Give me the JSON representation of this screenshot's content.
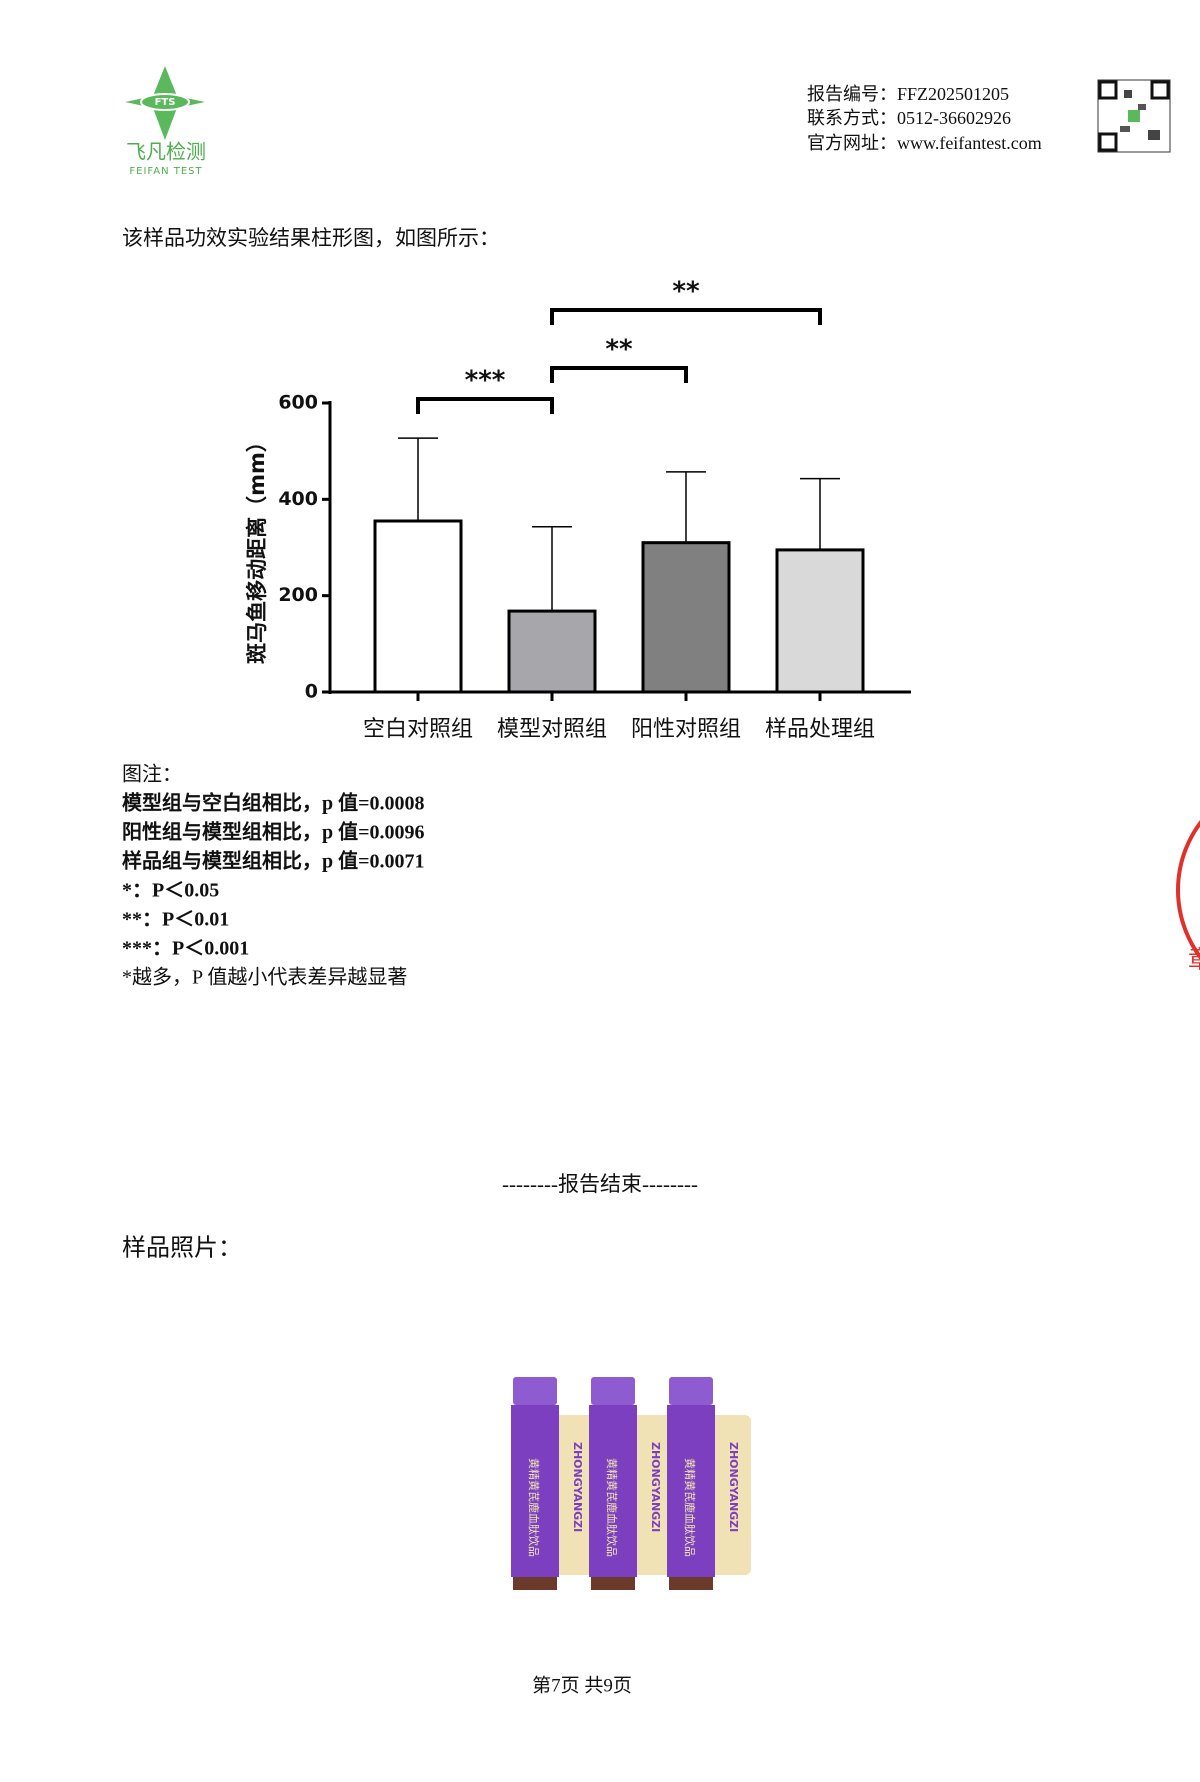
{
  "header": {
    "logo_mark": "FTS",
    "logo_name": "飞凡检测",
    "logo_sub": "FEIFAN TEST",
    "info": [
      "报告编号：FFZ202501205",
      "联系方式：0512-36602926",
      "官方网址：www.feifantest.com"
    ]
  },
  "intro": "该样品功效实验结果柱形图，如图所示：",
  "chart_data": {
    "type": "bar",
    "y_label": "斑马鱼移动距离（mm）",
    "categories": [
      "空白对照组",
      "模型对照组",
      "阳性对照组",
      "样品处理组"
    ],
    "values": [
      355,
      168,
      310,
      295
    ],
    "errors": [
      172,
      175,
      147,
      148
    ],
    "colors": [
      "#ffffff",
      "#a6a6ab",
      "#808080",
      "#d9d9d9"
    ],
    "ylim": [
      0,
      600
    ],
    "yticks": [
      0,
      200,
      400,
      600
    ],
    "comparisons": [
      {
        "label": "***",
        "groups": [
          0,
          1
        ]
      },
      {
        "label": "**",
        "groups": [
          1,
          2
        ]
      },
      {
        "label": "**",
        "groups": [
          1,
          3
        ]
      }
    ]
  },
  "notes": [
    "图注：",
    "模型组与空白组相比，p 值=0.0008",
    "阳性组与模型组相比，p 值=0.0096",
    "样品组与模型组相比，p 值=0.0071",
    "*：P＜0.05",
    "**：P＜0.01",
    "***：P＜0.001",
    "*越多，P 值越小代表差异越显著"
  ],
  "end_text": "--------报告结束--------",
  "photo_label": "样品照片：",
  "bottle": {
    "brand": "ZHONGYANGZI",
    "name": "黄精黄芪鹿血肽饮品"
  },
  "stamp_text": "章",
  "footer": "第7页 共9页"
}
